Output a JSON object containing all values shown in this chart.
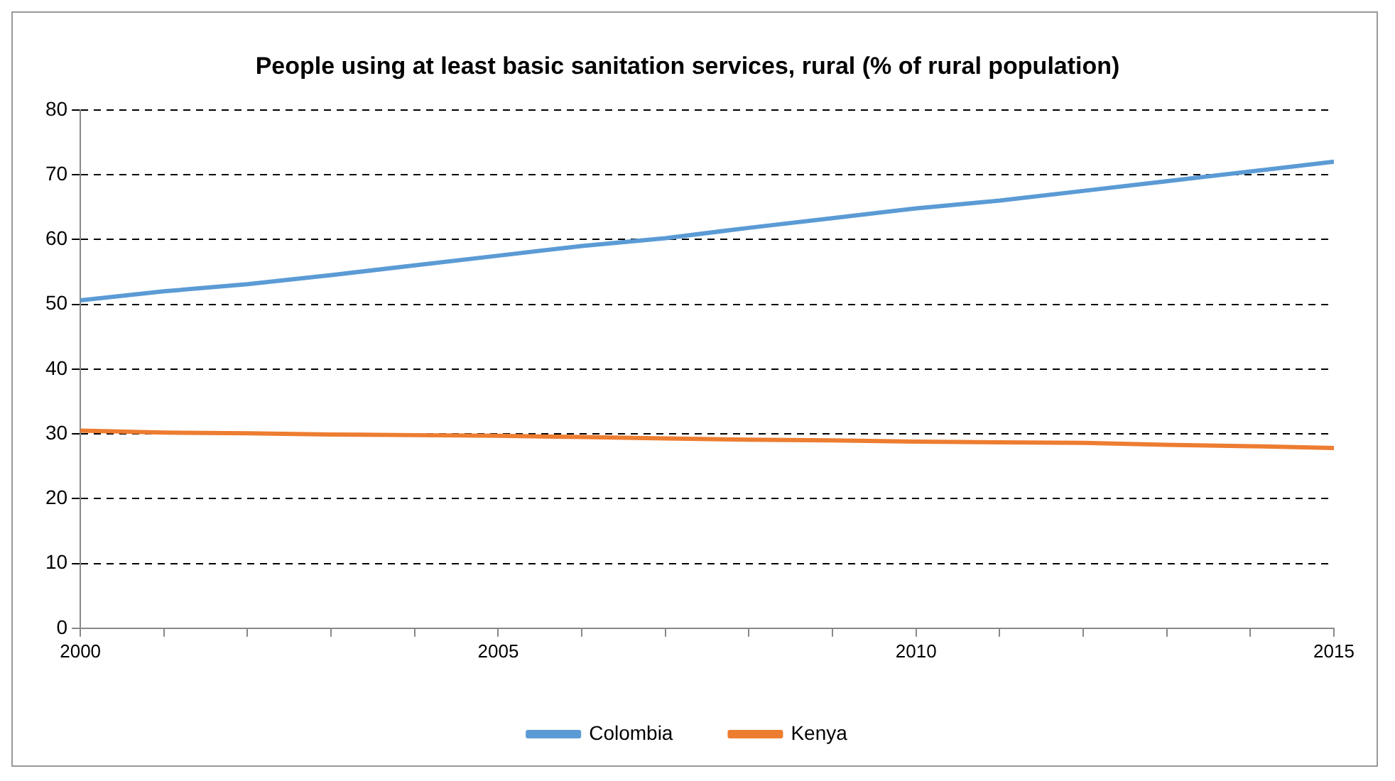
{
  "chart_data": {
    "type": "line",
    "title": "People using at least basic sanitation services, rural (% of rural population)",
    "x": [
      2000,
      2001,
      2002,
      2003,
      2004,
      2005,
      2006,
      2007,
      2008,
      2009,
      2010,
      2011,
      2012,
      2013,
      2014,
      2015
    ],
    "series": [
      {
        "name": "Colombia",
        "color": "#5b9bd5",
        "values": [
          50.6,
          52.0,
          53.1,
          54.5,
          56.0,
          57.5,
          59.0,
          60.2,
          61.8,
          63.3,
          64.8,
          66.0,
          67.5,
          69.0,
          70.5,
          72.0
        ]
      },
      {
        "name": "Kenya",
        "color": "#ed7d31",
        "values": [
          30.5,
          30.2,
          30.1,
          29.9,
          29.8,
          29.7,
          29.5,
          29.3,
          29.1,
          29.0,
          28.8,
          28.7,
          28.6,
          28.3,
          28.1,
          27.8
        ]
      }
    ],
    "xlim": [
      2000,
      2015
    ],
    "xticks": [
      2000,
      {
        "value": 2001,
        "label": null
      },
      {
        "value": 2002,
        "label": null
      },
      {
        "value": 2003,
        "label": null
      },
      {
        "value": 2004,
        "label": null
      },
      2005,
      {
        "value": 2006,
        "label": null
      },
      {
        "value": 2007,
        "label": null
      },
      {
        "value": 2008,
        "label": null
      },
      {
        "value": 2009,
        "label": null
      },
      2010,
      {
        "value": 2011,
        "label": null
      },
      {
        "value": 2012,
        "label": null
      },
      {
        "value": 2013,
        "label": null
      },
      {
        "value": 2014,
        "label": null
      },
      2015
    ],
    "ylim": [
      0,
      80
    ],
    "yticks": [
      0,
      10,
      20,
      30,
      40,
      50,
      60,
      70,
      80
    ],
    "grid": "y",
    "legend": "bottom",
    "marker": "none",
    "line_style": "solid"
  }
}
